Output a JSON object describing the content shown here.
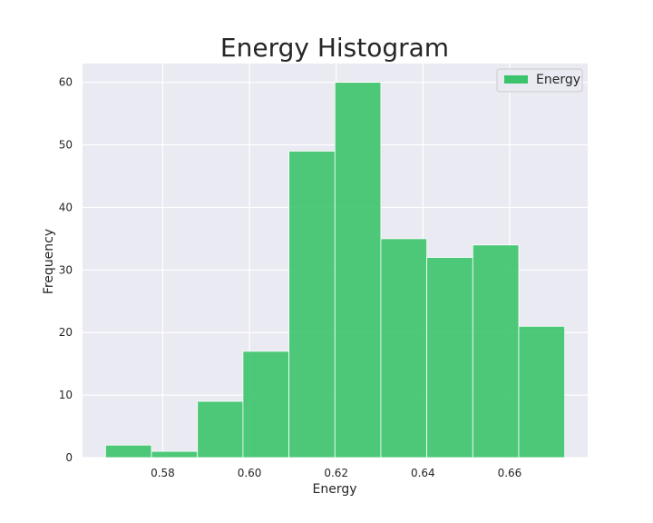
{
  "chart_data": {
    "type": "bar",
    "title": "Energy Histogram",
    "xlabel": "Energy",
    "ylabel": "Frequency",
    "bin_edges": [
      0.5668,
      0.5774,
      0.588,
      0.5985,
      0.6091,
      0.6197,
      0.6303,
      0.6409,
      0.6515,
      0.6621,
      0.6727
    ],
    "values": [
      2,
      1,
      9,
      17,
      49,
      60,
      35,
      32,
      34,
      21
    ],
    "xlim": [
      0.5615,
      0.678
    ],
    "ylim": [
      0,
      63
    ],
    "xticks": [
      "0.58",
      "0.60",
      "0.62",
      "0.64",
      "0.66"
    ],
    "yticks": [
      "0",
      "10",
      "20",
      "30",
      "40",
      "50",
      "60"
    ],
    "series": [
      {
        "name": "Energy",
        "color": "#3cc46c"
      }
    ],
    "grid": true,
    "legend_position": "top-right",
    "colors": {
      "background": "#eaeaf2",
      "bar": "#3cc46c",
      "grid": "#ffffff"
    }
  }
}
